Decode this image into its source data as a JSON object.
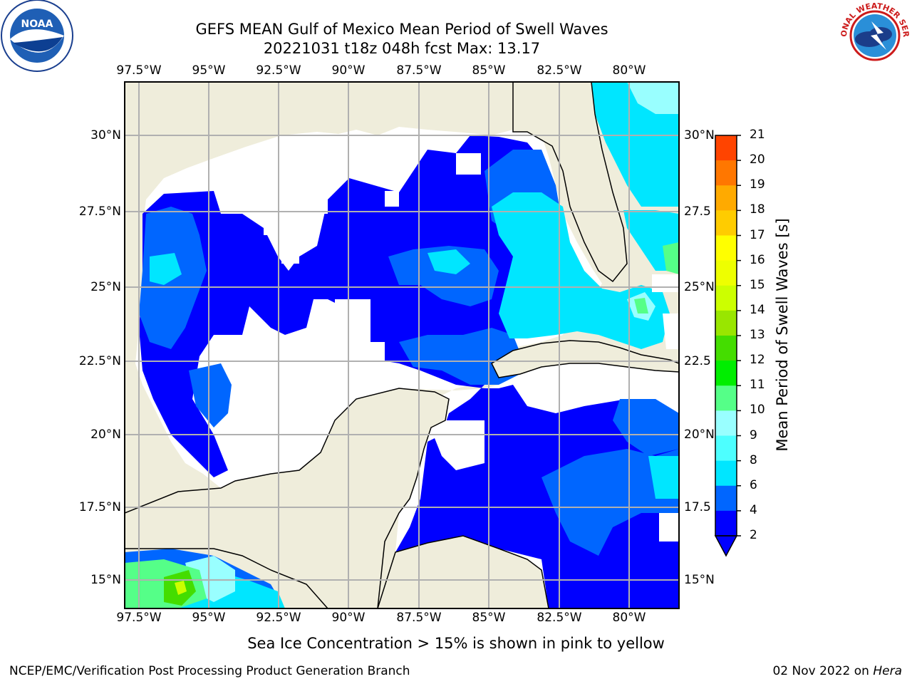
{
  "title": {
    "line1": "GEFS MEAN Gulf of Mexico Mean Period of Swell Waves",
    "line2": "20221031 t18z 048h fcst   Max: 13.17"
  },
  "map": {
    "lon_labels": [
      "97.5°W",
      "95°W",
      "92.5°W",
      "90°W",
      "87.5°W",
      "85°W",
      "82.5°W",
      "80°W"
    ],
    "lat_labels_left": [
      "30°N",
      "27.5°N",
      "25°N",
      "22.5°N",
      "20°N",
      "17.5°N",
      "15°N"
    ],
    "lat_labels_right": [
      "30°N",
      "27.5",
      "25°N",
      "22.5",
      "20°N",
      "17.5",
      "15°N"
    ],
    "colors": {
      "land": "#efeddb",
      "no_data": "#ffffff",
      "grid": "#b0b0b0",
      "coast": "#000000"
    }
  },
  "colorbar": {
    "label": "Mean Period of Swell Waves [s]",
    "ticks": [
      "2",
      "4",
      "6",
      "8",
      "9",
      "10",
      "11",
      "12",
      "13",
      "14",
      "15",
      "16",
      "17",
      "18",
      "19",
      "20",
      "21"
    ],
    "colors": [
      "#0000ff",
      "#0066ff",
      "#00e6ff",
      "#4dffff",
      "#99ffff",
      "#55ff88",
      "#00ee00",
      "#44dd00",
      "#99e600",
      "#ccff00",
      "#eeff00",
      "#ffff00",
      "#ffcc00",
      "#ffaa00",
      "#ff7700",
      "#ff4400",
      "#ff0000"
    ]
  },
  "note": "Sea Ice Concentration > 15% is shown in pink to yellow",
  "footer": {
    "left": "NCEP/EMC/Verification Post Processing Product Generation Branch",
    "right_date": "02 Nov 2022 on",
    "right_machine": "Hera"
  },
  "logos": {
    "noaa_text": "NOAA",
    "nws_text": "NATIONAL WEATHER SERVICE"
  }
}
